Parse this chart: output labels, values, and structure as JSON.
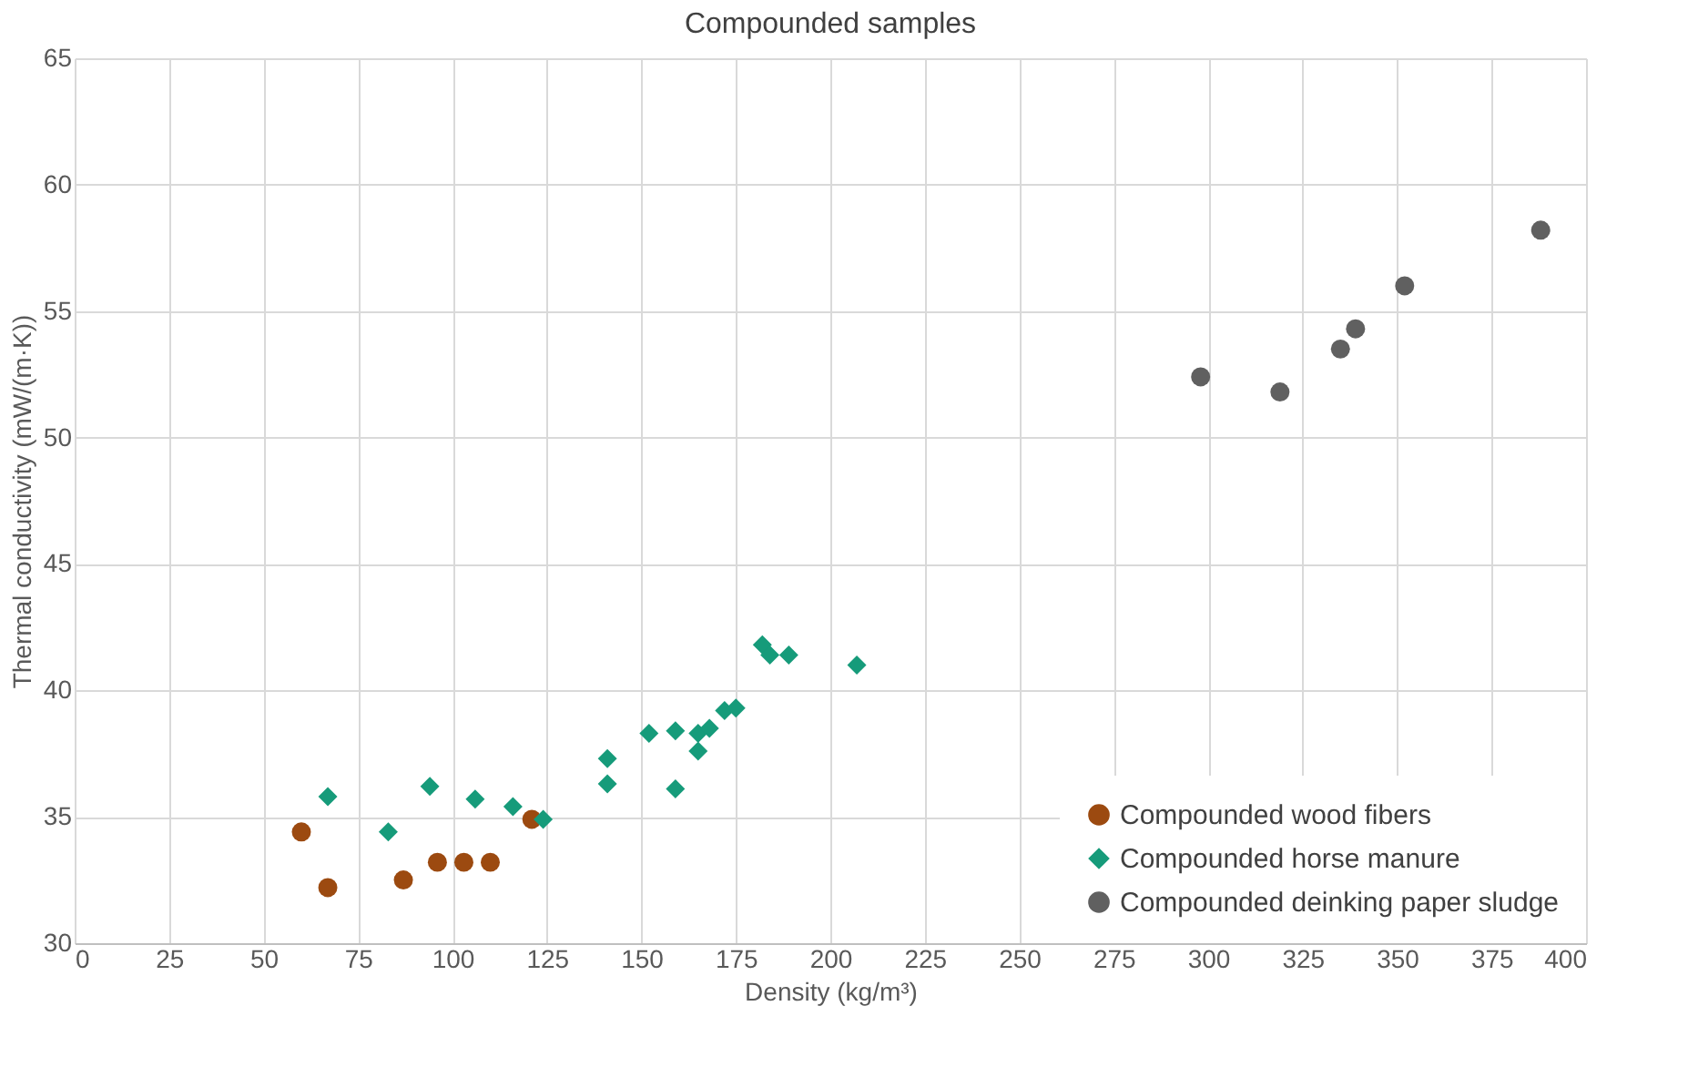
{
  "chart_data": {
    "type": "scatter",
    "title": "Compounded samples",
    "xlabel": "Density (kg/m³)",
    "ylabel": "Thermal conductivity (mW/(m·K))",
    "xlim": [
      0,
      400
    ],
    "xticks": [
      0,
      25,
      50,
      75,
      100,
      125,
      150,
      175,
      200,
      225,
      250,
      275,
      300,
      325,
      350,
      375,
      400
    ],
    "ylim": [
      30,
      65
    ],
    "yticks": [
      30,
      35,
      40,
      45,
      50,
      55,
      60,
      65
    ],
    "grid": true,
    "legend": "bottom right",
    "series": [
      {
        "name": "Compounded wood fibers",
        "color": "#9c4a10",
        "marker": "circle",
        "x": [
          60,
          67,
          87,
          96,
          103,
          110,
          121
        ],
        "values": [
          34.4,
          32.2,
          32.5,
          33.2,
          33.2,
          33.2,
          34.9
        ]
      },
      {
        "name": "Compounded horse manure",
        "color": "#169b7a",
        "marker": "diamond",
        "x": [
          67,
          83,
          94,
          106,
          116,
          124,
          141,
          141,
          152,
          159,
          159,
          165,
          165,
          168,
          172,
          175,
          182,
          184,
          189,
          207
        ],
        "values": [
          35.8,
          34.4,
          36.2,
          35.7,
          35.4,
          34.9,
          37.3,
          36.3,
          38.3,
          38.4,
          36.1,
          38.3,
          37.6,
          38.5,
          39.2,
          39.3,
          41.8,
          41.4,
          41.4,
          41.0
        ]
      },
      {
        "name": "Compounded deinking paper sludge",
        "color": "#606060",
        "marker": "circle",
        "x": [
          298,
          319,
          335,
          339,
          352,
          388
        ],
        "values": [
          52.4,
          51.8,
          53.5,
          54.3,
          56.0,
          58.2
        ]
      }
    ]
  }
}
